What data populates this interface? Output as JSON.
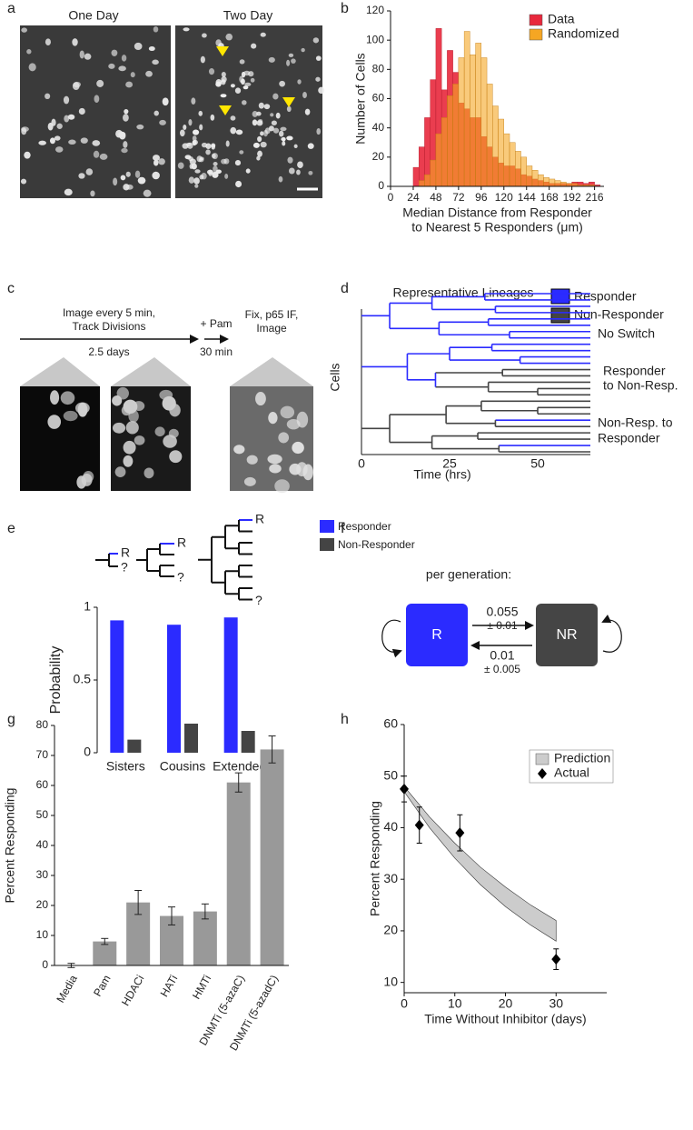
{
  "panel_labels": [
    "a",
    "b",
    "c",
    "d",
    "e",
    "f",
    "g",
    "h"
  ],
  "panel_a": {
    "titles": [
      "One Day",
      "Two Day"
    ]
  },
  "panel_c": {
    "step1": [
      "Image every 5 min,",
      "Track Divisions"
    ],
    "step1_duration": "2.5 days",
    "step2": "+ Pam",
    "step2_duration": "30 min",
    "step3": [
      "Fix, p65 IF,",
      "Image"
    ]
  },
  "panel_d": {
    "title": "Representative Lineages",
    "legend": [
      "Responder",
      "Non-Responder"
    ],
    "annotations": [
      [
        "No Switch"
      ],
      [
        "Responder",
        "to Non-Resp."
      ],
      [
        "Non-Resp. to",
        "Responder"
      ]
    ],
    "ylabel": "Cells",
    "xlabel": "Time (hrs)",
    "xticks": [
      "0",
      "25",
      "50"
    ]
  },
  "panel_e_icons": [
    {
      "top": "R",
      "bottom": "?"
    },
    {
      "top": "R",
      "bottom": "?"
    },
    {
      "top": "R",
      "bottom": "?"
    }
  ],
  "panel_f": {
    "title": "per generation:",
    "states": [
      "R",
      "NR"
    ],
    "forward_rate": "0.055",
    "forward_error": "± 0.01",
    "backward_rate": "0.01",
    "backward_error": "± 0.005"
  },
  "chart_data": [
    {
      "type": "histogram",
      "xlabel": [
        "Median Distance from Responder",
        "to Nearest 5 Responders (μm)"
      ],
      "ylabel": "Number of Cells",
      "bins": [
        24,
        30,
        36,
        42,
        48,
        54,
        60,
        66,
        72,
        78,
        84,
        90,
        96,
        102,
        108,
        114,
        120,
        126,
        132,
        138,
        144,
        150,
        156,
        162,
        168,
        174,
        180,
        186,
        192,
        198,
        204,
        210,
        216,
        222
      ],
      "series": [
        {
          "name": "Data",
          "color": "#e8283c",
          "values": [
            13,
            27,
            47,
            73,
            108,
            66,
            93,
            78,
            57,
            53,
            47,
            47,
            34,
            27,
            20,
            16,
            14,
            14,
            12,
            8,
            7,
            5,
            4,
            3,
            2,
            2,
            2,
            2,
            3,
            3,
            2,
            3,
            1
          ]
        },
        {
          "name": "Randomized",
          "color": "#f5a623",
          "values": [
            0,
            4,
            8,
            18,
            36,
            47,
            62,
            70,
            88,
            106,
            90,
            98,
            88,
            70,
            55,
            46,
            36,
            30,
            24,
            20,
            14,
            11,
            8,
            6,
            5,
            4,
            3,
            2,
            2,
            1,
            1,
            1,
            0
          ]
        }
      ],
      "xlim": [
        0,
        226
      ],
      "ylim": [
        0,
        120
      ],
      "xticks": [
        0,
        24,
        48,
        72,
        96,
        120,
        144,
        168,
        192,
        216
      ],
      "yticks": [
        0,
        20,
        40,
        60,
        80,
        100,
        120
      ],
      "legend": "upper right"
    },
    {
      "type": "bar",
      "ylabel": "Probability",
      "categories": [
        "Sisters",
        "Cousins",
        "Extended"
      ],
      "series": [
        {
          "name": "Responder",
          "color": "#2b2bff",
          "values": [
            0.91,
            0.88,
            0.93
          ]
        },
        {
          "name": "Non-Responder",
          "color": "#444444",
          "values": [
            0.09,
            0.2,
            0.15
          ]
        }
      ],
      "ylim": [
        0,
        1
      ],
      "yticks": [
        0,
        0.5,
        1
      ]
    },
    {
      "type": "bar",
      "ylabel": "Percent Responding",
      "categories": [
        "Media",
        "Pam",
        "HDACi",
        "HATi",
        "HMTi",
        "DNMTi (5-azaC)",
        "DNMTi (5-azadC)"
      ],
      "values": [
        0,
        8,
        21,
        16.5,
        18,
        61,
        72
      ],
      "errors": [
        0.7,
        1,
        4,
        3,
        2.5,
        3.2,
        4.5
      ],
      "color": "#999999",
      "ylim": [
        0,
        80
      ],
      "yticks": [
        0,
        10,
        20,
        30,
        40,
        50,
        60,
        70,
        80
      ]
    },
    {
      "type": "line",
      "xlabel": "Time Without Inhibitor (days)",
      "ylabel": "Percent Responding",
      "series": [
        {
          "name": "Prediction",
          "color": "#cccccc",
          "x": [
            0,
            5,
            10,
            15,
            20,
            25,
            30
          ],
          "lower": [
            47,
            40,
            34.1,
            29,
            24.7,
            21.1,
            18
          ],
          "upper": [
            48,
            42.1,
            37,
            32.4,
            28.5,
            25,
            22
          ]
        },
        {
          "name": "Actual",
          "color": "#000000",
          "x": [
            0,
            3,
            11,
            30
          ],
          "values": [
            47.5,
            40.5,
            39,
            14.5
          ],
          "errors": [
            2.5,
            3.5,
            3.5,
            2
          ]
        }
      ],
      "xlim": [
        0,
        40
      ],
      "ylim": [
        8,
        60
      ],
      "xticks": [
        0,
        10,
        20,
        30
      ],
      "yticks": [
        10,
        20,
        30,
        40,
        50,
        60
      ],
      "legend": "upper right"
    }
  ]
}
